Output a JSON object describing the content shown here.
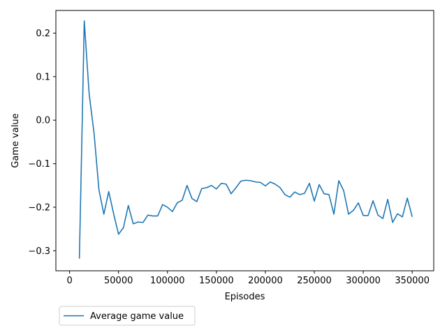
{
  "chart_data": {
    "type": "line",
    "xlabel": "Episodes",
    "ylabel": "Game value",
    "xlim": [
      -14000,
      372000
    ],
    "ylim": [
      -0.346,
      0.252
    ],
    "xticks": [
      0,
      50000,
      100000,
      150000,
      200000,
      250000,
      300000,
      350000
    ],
    "xtick_labels": [
      "0",
      "50000",
      "100000",
      "150000",
      "200000",
      "250000",
      "300000",
      "350000"
    ],
    "yticks": [
      -0.3,
      -0.2,
      -0.1,
      0.0,
      0.1,
      0.2
    ],
    "ytick_labels": [
      "−0.3",
      "−0.2",
      "−0.1",
      "0.0",
      "0.1",
      "0.2"
    ],
    "grid": false,
    "legend_position": "below-left",
    "series": [
      {
        "name": "Average game value",
        "color": "#1f77b4",
        "x": [
          10000,
          12500,
          15000,
          20000,
          25000,
          30000,
          35000,
          40000,
          45000,
          50000,
          55000,
          60000,
          65000,
          70000,
          75000,
          80000,
          85000,
          90000,
          95000,
          100000,
          105000,
          110000,
          115000,
          120000,
          125000,
          130000,
          135000,
          140000,
          145000,
          150000,
          155000,
          160000,
          165000,
          170000,
          175000,
          180000,
          185000,
          190000,
          195000,
          200000,
          205000,
          210000,
          215000,
          220000,
          225000,
          230000,
          235000,
          240000,
          245000,
          250000,
          255000,
          260000,
          265000,
          270000,
          275000,
          280000,
          285000,
          290000,
          295000,
          300000,
          305000,
          310000,
          315000,
          320000,
          325000,
          330000,
          335000,
          340000,
          345000,
          350000
        ],
        "y": [
          -0.318,
          -0.05,
          0.228,
          0.06,
          -0.03,
          -0.16,
          -0.216,
          -0.164,
          -0.215,
          -0.262,
          -0.247,
          -0.196,
          -0.238,
          -0.234,
          -0.235,
          -0.218,
          -0.22,
          -0.22,
          -0.194,
          -0.2,
          -0.21,
          -0.19,
          -0.184,
          -0.15,
          -0.18,
          -0.187,
          -0.157,
          -0.155,
          -0.15,
          -0.158,
          -0.145,
          -0.147,
          -0.169,
          -0.155,
          -0.14,
          -0.138,
          -0.139,
          -0.142,
          -0.143,
          -0.151,
          -0.142,
          -0.147,
          -0.155,
          -0.171,
          -0.177,
          -0.165,
          -0.171,
          -0.168,
          -0.145,
          -0.186,
          -0.148,
          -0.169,
          -0.171,
          -0.216,
          -0.139,
          -0.162,
          -0.216,
          -0.207,
          -0.19,
          -0.219,
          -0.219,
          -0.185,
          -0.218,
          -0.226,
          -0.182,
          -0.235,
          -0.215,
          -0.222,
          -0.179,
          -0.222
        ]
      }
    ]
  }
}
